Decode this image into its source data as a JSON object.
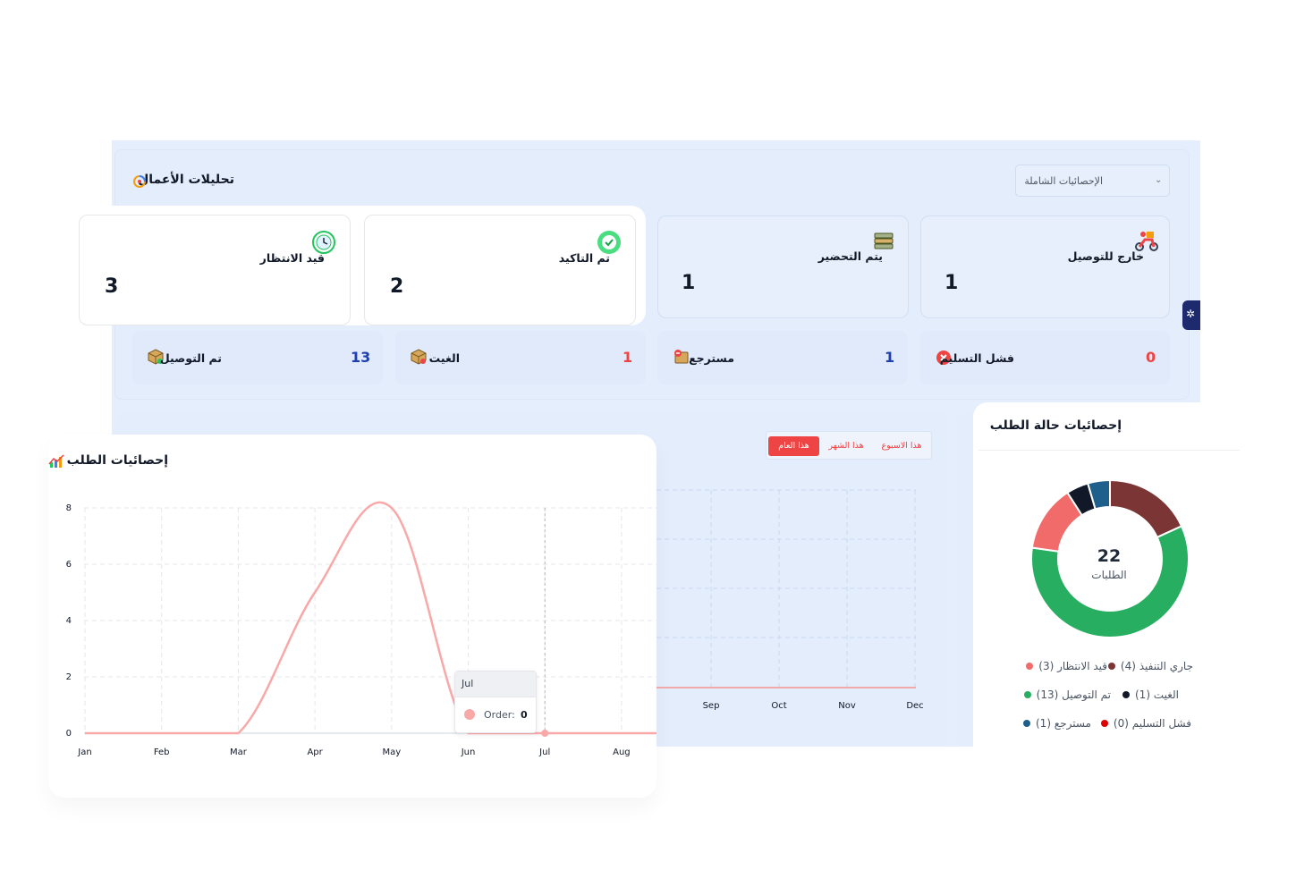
{
  "analytics": {
    "title": "تحليلات الأعمال",
    "select_value": "الإحصائيات الشاملة",
    "cards": [
      {
        "label": "قيد الانتظار",
        "value": "3",
        "icon": "clock-icon"
      },
      {
        "label": "تم التاكيد",
        "value": "2",
        "icon": "check-circle-icon"
      },
      {
        "label": "يتم التحضير",
        "value": "1",
        "icon": "stack-icon"
      },
      {
        "label": "خارج للتوصيل",
        "value": "1",
        "icon": "delivery-scooter-icon"
      }
    ],
    "stats": [
      {
        "label": "تم التوصيل",
        "value": "13",
        "color": "#1e40af",
        "icon": "package-icon"
      },
      {
        "label": "الغيت",
        "value": "1",
        "color": "#ef4444",
        "icon": "cancelled-package-icon"
      },
      {
        "label": "مسترجع",
        "value": "1",
        "color": "#1e40af",
        "icon": "returned-icon"
      },
      {
        "label": "فشل التسليم",
        "value": "0",
        "color": "#ef4444",
        "icon": "error-circle-icon"
      }
    ]
  },
  "period_tabs": {
    "year": "هذا العام",
    "month": "هذا الشهر",
    "week": "هذا الاسبوع"
  },
  "order_stats": {
    "title": "إحصائيات الطلب",
    "tooltip": {
      "header": "Jul",
      "label": "Order:",
      "value": "0"
    }
  },
  "chart_data": [
    {
      "type": "line",
      "title": "إحصائيات الطلب",
      "categories": [
        "Jan",
        "Feb",
        "Mar",
        "Apr",
        "May",
        "Jun",
        "Jul",
        "Aug",
        "Sep",
        "Oct",
        "Nov",
        "Dec"
      ],
      "series": [
        {
          "name": "Order",
          "values": [
            0,
            0,
            0,
            5,
            8,
            0,
            0,
            0,
            0,
            0,
            0,
            0
          ],
          "color": "#f9a8a8"
        }
      ],
      "yticks": [
        0,
        2,
        4,
        6,
        8
      ],
      "ylim": [
        0,
        8
      ],
      "grid": true
    },
    {
      "type": "pie",
      "title": "إحصائيات حالة الطلب",
      "center_value": "22",
      "center_label": "الطلبات",
      "slices": [
        {
          "label": "جاري التنفيذ",
          "value": 4,
          "color": "#7b3535"
        },
        {
          "label": "تم التوصيل",
          "value": 13,
          "color": "#27ae60"
        },
        {
          "label": "قيد الانتظار",
          "value": 3,
          "color": "#f26b6b"
        },
        {
          "label": "الغيت",
          "value": 1,
          "color": "#111827"
        },
        {
          "label": "مسترجع",
          "value": 1,
          "color": "#1f5f8b"
        },
        {
          "label": "فشل التسليم",
          "value": 0,
          "color": "#e00000"
        }
      ],
      "legend": [
        {
          "text": "جاري التنفيذ (4)",
          "color": "#7b3535"
        },
        {
          "text": "قيد الانتظار (3)",
          "color": "#f26b6b"
        },
        {
          "text": "الغيت (1)",
          "color": "#111827"
        },
        {
          "text": "تم التوصيل (13)",
          "color": "#27ae60"
        },
        {
          "text": "فشل التسليم (0)",
          "color": "#e00000"
        },
        {
          "text": "مسترجع (1)",
          "color": "#1f5f8b"
        }
      ]
    }
  ]
}
